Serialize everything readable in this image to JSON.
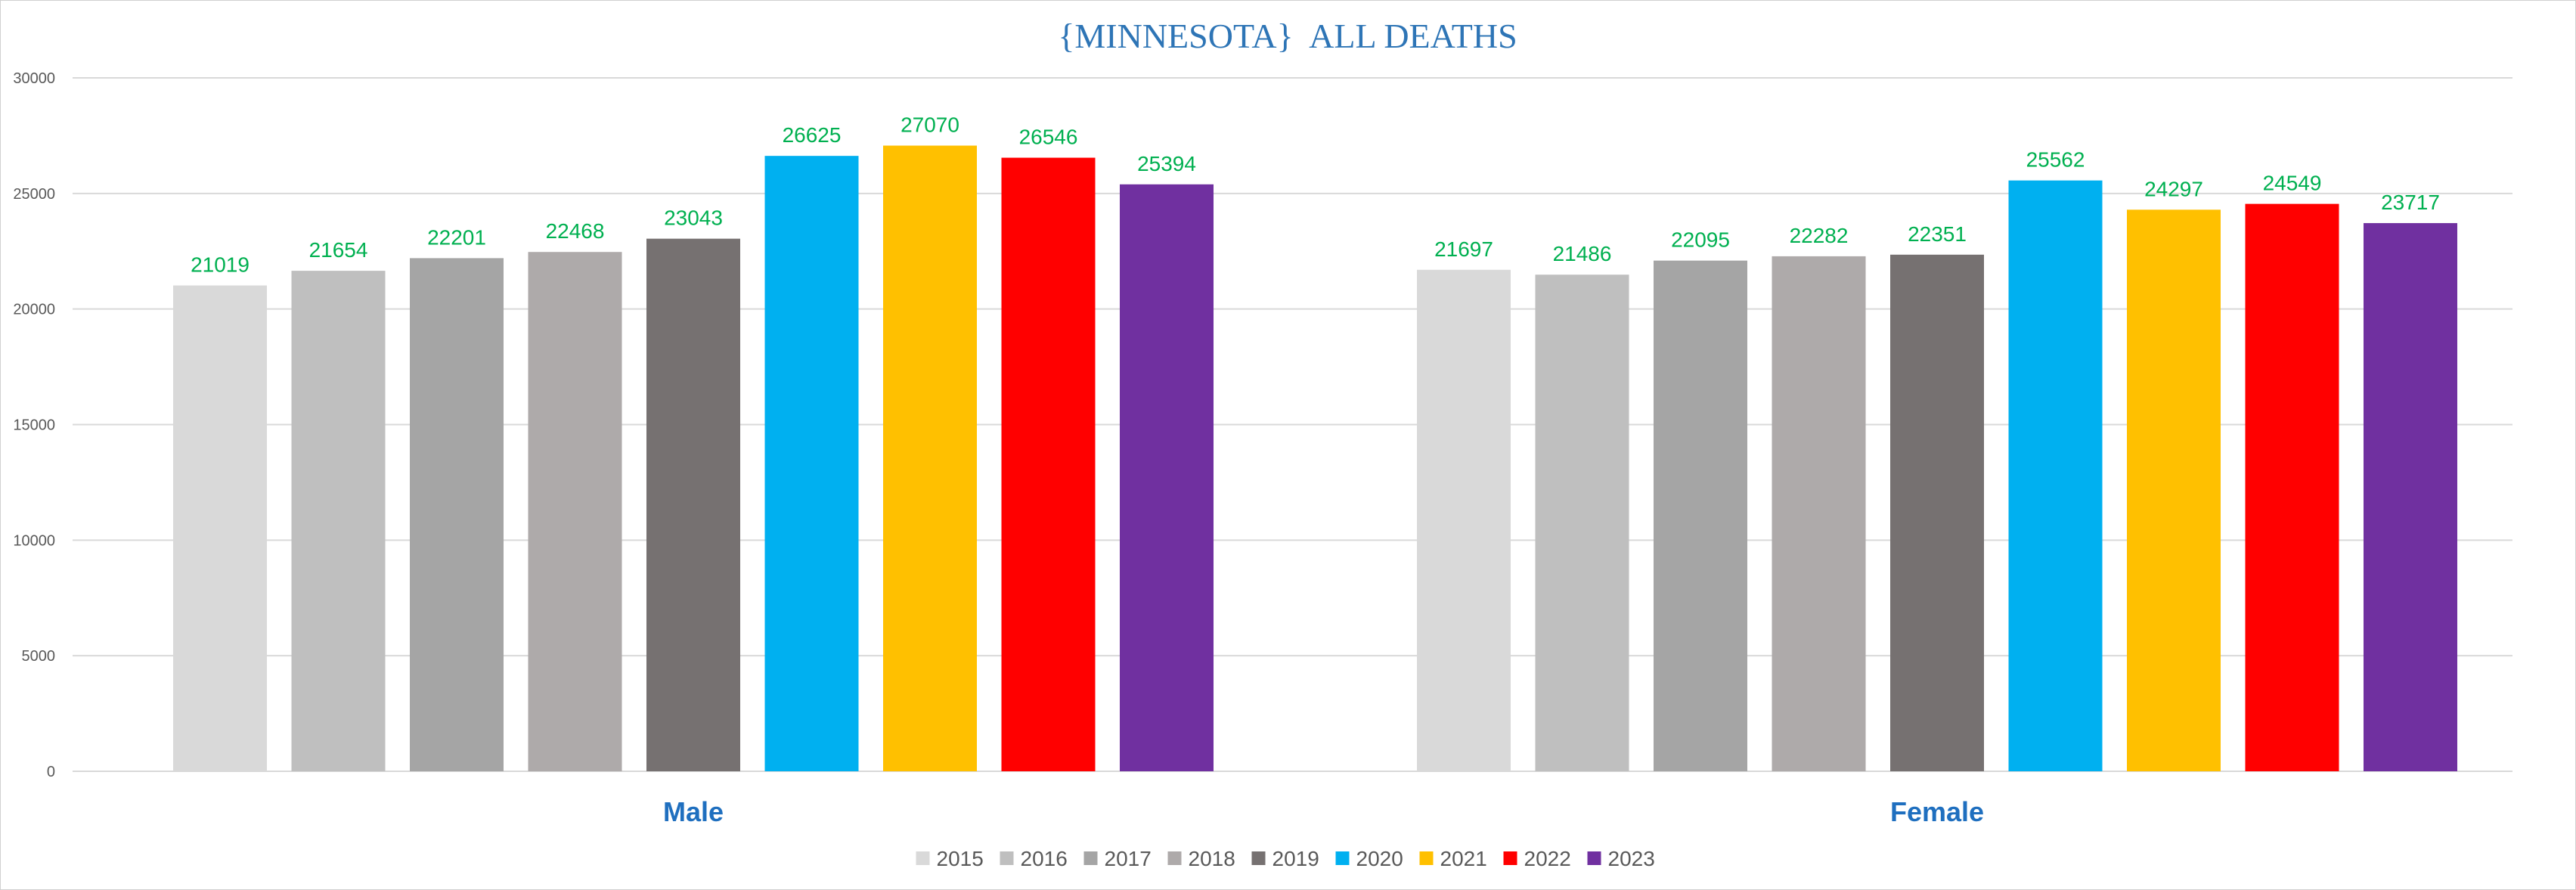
{
  "chart_data": {
    "type": "bar",
    "title": "{MINNESOTA}  ALL DEATHS",
    "xlabel": "",
    "ylabel": "",
    "categories": [
      "Male",
      "Female"
    ],
    "ylim": [
      0,
      30000
    ],
    "yticks": [
      "0",
      "5000",
      "10000",
      "15000",
      "20000",
      "25000",
      "30000"
    ],
    "grid": true,
    "legend_position": "bottom",
    "data_label_color": "#00b050",
    "series": [
      {
        "name": "2015",
        "color": "#d9d9d9",
        "values": [
          21019,
          21697
        ]
      },
      {
        "name": "2016",
        "color": "#bfbfbf",
        "values": [
          21654,
          21486
        ]
      },
      {
        "name": "2017",
        "color": "#a5a5a5",
        "values": [
          22201,
          22095
        ]
      },
      {
        "name": "2018",
        "color": "#aeaaaa",
        "values": [
          22468,
          22282
        ]
      },
      {
        "name": "2019",
        "color": "#767171",
        "values": [
          23043,
          22351
        ]
      },
      {
        "name": "2020",
        "color": "#00b0f0",
        "values": [
          26625,
          25562
        ]
      },
      {
        "name": "2021",
        "color": "#ffc000",
        "values": [
          27070,
          24297
        ]
      },
      {
        "name": "2022",
        "color": "#ff0000",
        "values": [
          26546,
          24549
        ]
      },
      {
        "name": "2023",
        "color": "#7030a0",
        "values": [
          25394,
          23717
        ]
      }
    ]
  }
}
